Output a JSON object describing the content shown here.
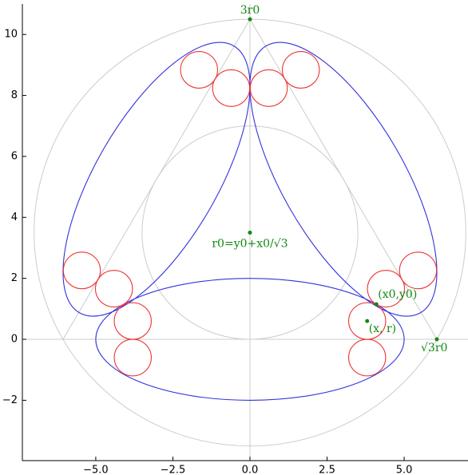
{
  "chart_data": {
    "type": "geometry",
    "xlim": [
      -7.38,
      7.07
    ],
    "ylim": [
      -3.98,
      11.0
    ],
    "xticks": [
      {
        "value": -5,
        "label": "−5.0"
      },
      {
        "value": -2.5,
        "label": "−2.5"
      },
      {
        "value": 0,
        "label": "0.0"
      },
      {
        "value": 2.5,
        "label": "2.5"
      },
      {
        "value": 5,
        "label": "5.0"
      }
    ],
    "yticks": [
      {
        "value": -2,
        "label": "−2"
      },
      0,
      2,
      4,
      6,
      8,
      10
    ],
    "reference_lines": {
      "x": 0,
      "y": 0
    },
    "guide_color": "#cccccc",
    "guide_circles": [
      {
        "cx": 0,
        "cy": 3.5,
        "r": 7
      },
      {
        "cx": 0,
        "cy": 3.5,
        "r": 3.5
      }
    ],
    "triangle": {
      "x": [
        0,
        6.06,
        -6.06
      ],
      "y": [
        10.5,
        0,
        0
      ]
    },
    "ellipse_color": "#3333dd",
    "ellipses": [
      {
        "cx": 0,
        "cy": 0,
        "rx": 5,
        "ry": 2,
        "angle": 0
      },
      {
        "cx": 3.03,
        "cy": 5.25,
        "rx": 5,
        "ry": 2,
        "angle": 120
      },
      {
        "cx": -3.03,
        "cy": 5.25,
        "rx": 5,
        "ry": 2,
        "angle": -120
      }
    ],
    "circle_color": "#ee3333",
    "circles": [
      {
        "cx": 3.8,
        "cy": 0.6,
        "r": 0.6
      },
      {
        "cx": 3.8,
        "cy": -0.6,
        "r": 0.6
      },
      {
        "cx": -3.8,
        "cy": 0.6,
        "r": 0.6
      },
      {
        "cx": -3.8,
        "cy": -0.6,
        "r": 0.6
      },
      {
        "cx": 0.61,
        "cy": 8.24,
        "r": 0.6
      },
      {
        "cx": 1.65,
        "cy": 8.84,
        "r": 0.6
      },
      {
        "cx": 4.41,
        "cy": 1.66,
        "r": 0.6
      },
      {
        "cx": 5.45,
        "cy": 2.26,
        "r": 0.6
      },
      {
        "cx": -4.41,
        "cy": 1.66,
        "r": 0.6
      },
      {
        "cx": -5.45,
        "cy": 2.26,
        "r": 0.6
      },
      {
        "cx": -0.61,
        "cy": 8.24,
        "r": 0.6
      },
      {
        "cx": -1.65,
        "cy": 8.84,
        "r": 0.6
      }
    ],
    "point_color": "#118811",
    "points": [
      {
        "x": 0,
        "y": 10.5,
        "label": "3r0"
      },
      {
        "x": 0,
        "y": 3.5,
        "label": "r0=y0+x0/√3"
      },
      {
        "x": 6.06,
        "y": 0,
        "label": "√3r0"
      },
      {
        "x": 4.1,
        "y": 1.15,
        "label": "(x0,y0)"
      },
      {
        "x": 3.8,
        "y": 0.6,
        "label": "(x, r)"
      }
    ]
  }
}
